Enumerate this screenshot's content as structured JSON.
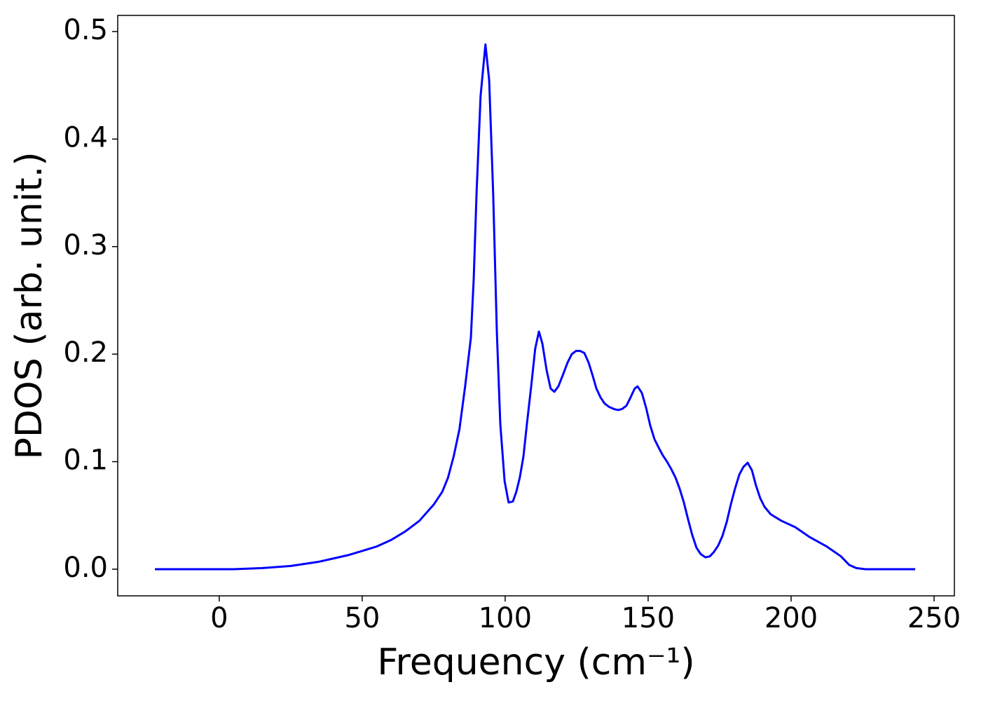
{
  "chart_data": {
    "type": "line",
    "x_label": "Frequency (cm⁻¹)",
    "y_label": "PDOS (arb. unit.)",
    "x": [
      -22.5,
      5,
      15,
      25,
      35,
      40,
      45,
      50,
      55,
      60,
      65,
      70,
      75,
      78,
      80,
      82,
      84,
      86,
      88,
      89,
      90,
      91.4,
      93.1,
      94.4,
      95.8,
      97.1,
      98.3,
      99.8,
      101.2,
      102.7,
      103.9,
      105.1,
      106.4,
      107.6,
      109.1,
      110.5,
      111.8,
      113.0,
      114.5,
      115.9,
      117.2,
      118.6,
      120.1,
      121.8,
      123.3,
      124.8,
      126.2,
      127.7,
      129.2,
      130.6,
      131.9,
      133.3,
      134.8,
      136.3,
      138.0,
      139.5,
      140.9,
      142.4,
      143.9,
      145.3,
      146.3,
      147.8,
      149.3,
      150.7,
      152.2,
      153.7,
      155.1,
      156.6,
      158.1,
      159.6,
      161.0,
      162.5,
      164.0,
      165.4,
      166.9,
      168.4,
      170.1,
      171.6,
      173.0,
      174.5,
      176.0,
      177.5,
      178.9,
      180.4,
      181.9,
      183.3,
      184.8,
      186.3,
      187.7,
      189.2,
      190.7,
      192.9,
      196.6,
      201.5,
      206.4,
      212.5,
      217.4,
      220.3,
      222.8,
      226.0,
      243.4
    ],
    "series": [
      {
        "name": "PDOS",
        "color": "#0000ff",
        "values": [
          0,
          0,
          0.001,
          0.003,
          0.007,
          0.01,
          0.013,
          0.017,
          0.021,
          0.027,
          0.035,
          0.045,
          0.06,
          0.072,
          0.085,
          0.105,
          0.13,
          0.17,
          0.215,
          0.27,
          0.35,
          0.44,
          0.488,
          0.455,
          0.35,
          0.22,
          0.135,
          0.082,
          0.062,
          0.063,
          0.072,
          0.085,
          0.105,
          0.135,
          0.17,
          0.205,
          0.221,
          0.21,
          0.185,
          0.168,
          0.165,
          0.17,
          0.18,
          0.192,
          0.2,
          0.203,
          0.203,
          0.201,
          0.192,
          0.18,
          0.168,
          0.16,
          0.154,
          0.151,
          0.149,
          0.148,
          0.149,
          0.152,
          0.16,
          0.168,
          0.17,
          0.164,
          0.15,
          0.134,
          0.121,
          0.113,
          0.106,
          0.1,
          0.093,
          0.085,
          0.075,
          0.062,
          0.046,
          0.032,
          0.02,
          0.014,
          0.011,
          0.012,
          0.016,
          0.022,
          0.031,
          0.044,
          0.06,
          0.075,
          0.088,
          0.095,
          0.099,
          0.092,
          0.078,
          0.066,
          0.058,
          0.051,
          0.045,
          0.039,
          0.03,
          0.021,
          0.012,
          0.004,
          0.001,
          0,
          0
        ]
      }
    ],
    "xlim": [
      -35.5,
      257.1
    ],
    "ylim": [
      -0.0248,
      0.515
    ],
    "xticks": [
      0,
      50,
      100,
      150,
      200,
      250
    ],
    "yticks": [
      {
        "value": 0,
        "label": "0.0"
      },
      0.1,
      0.2,
      0.3,
      0.4,
      0.5
    ],
    "grid": false
  }
}
